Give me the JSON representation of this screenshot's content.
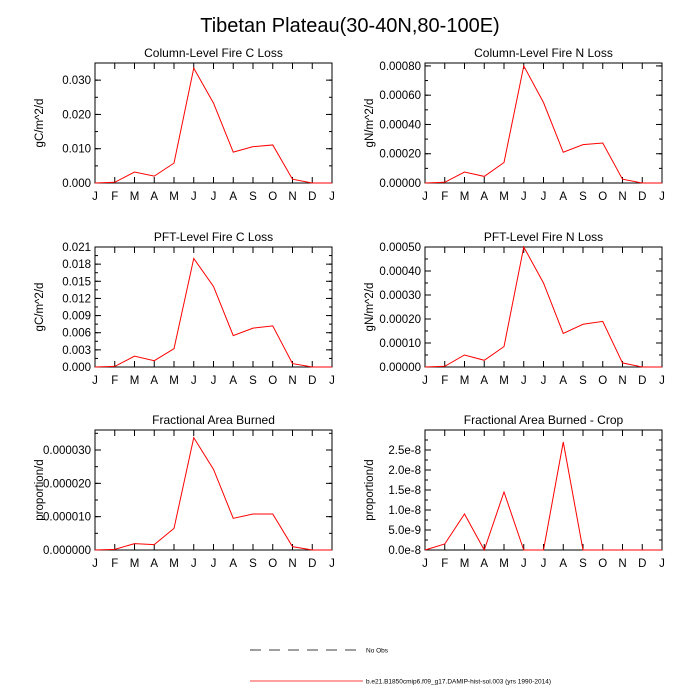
{
  "figure_title": "Tibetan Plateau(30-40N,80-100E)",
  "month_labels": [
    "J",
    "F",
    "M",
    "A",
    "M",
    "J",
    "J",
    "A",
    "S",
    "O",
    "N",
    "D",
    "J"
  ],
  "colors": {
    "model": "#ff0000",
    "obs": "#000000"
  },
  "legend": [
    {
      "label": "No Obs",
      "style": "dashed",
      "color": "#000000"
    },
    {
      "label": "b.e21.B1850cmip6.f09_g17.DAMIP-hist-sol.003 (yrs 1990-2014)",
      "style": "solid",
      "color": "#ff0000"
    }
  ],
  "chart_data": [
    {
      "type": "line",
      "title": "Column-Level Fire C Loss",
      "ylabel": "gC/m^2/d",
      "ylim": [
        0,
        0.035
      ],
      "yticks": [
        0,
        0.01,
        0.02,
        0.03
      ],
      "ytick_labels": [
        "0.000",
        "0.010",
        "0.020",
        "0.030"
      ],
      "yminor": 0.005,
      "x": [
        0,
        1,
        2,
        3,
        4,
        5,
        6,
        7,
        8,
        9,
        10,
        11,
        12
      ],
      "values": [
        0.0,
        0.0002,
        0.0032,
        0.002,
        0.0058,
        0.0335,
        0.0233,
        0.009,
        0.0106,
        0.0111,
        0.0011,
        0.0,
        0.0
      ]
    },
    {
      "type": "line",
      "title": "Column-Level Fire N Loss",
      "ylabel": "gN/m^2/d",
      "ylim": [
        0,
        0.00082
      ],
      "yticks": [
        0,
        0.0002,
        0.0004,
        0.0006,
        0.0008
      ],
      "ytick_labels": [
        "0.00000",
        "0.00020",
        "0.00040",
        "0.00060",
        "0.00080"
      ],
      "yminor": 0.0001,
      "x": [
        0,
        1,
        2,
        3,
        4,
        5,
        6,
        7,
        8,
        9,
        10,
        11,
        12
      ],
      "values": [
        0.0,
        5e-06,
        7.5e-05,
        4.5e-05,
        0.00014,
        0.0008,
        0.00055,
        0.00021,
        0.000262,
        0.000273,
        2.6e-05,
        0.0,
        0.0
      ]
    },
    {
      "type": "line",
      "title": "PFT-Level Fire C Loss",
      "ylabel": "gC/m^2/d",
      "ylim": [
        0,
        0.021
      ],
      "yticks": [
        0,
        0.003,
        0.006,
        0.009,
        0.012,
        0.015,
        0.018,
        0.021
      ],
      "ytick_labels": [
        "0.000",
        "0.003",
        "0.006",
        "0.009",
        "0.012",
        "0.015",
        "0.018",
        "0.021"
      ],
      "yminor": 0.0015,
      "x": [
        0,
        1,
        2,
        3,
        4,
        5,
        6,
        7,
        8,
        9,
        10,
        11,
        12
      ],
      "values": [
        0.0,
        0.0001,
        0.0019,
        0.0011,
        0.0032,
        0.019,
        0.0141,
        0.0055,
        0.0068,
        0.0072,
        0.0006,
        0.0,
        0.0
      ]
    },
    {
      "type": "line",
      "title": "PFT-Level Fire N Loss",
      "ylabel": "gN/m^2/d",
      "ylim": [
        0,
        0.0005
      ],
      "yticks": [
        0,
        0.0001,
        0.0002,
        0.0003,
        0.0004,
        0.0005
      ],
      "ytick_labels": [
        "0.00000",
        "0.00010",
        "0.00020",
        "0.00030",
        "0.00040",
        "0.00050"
      ],
      "yminor": 5e-05,
      "x": [
        0,
        1,
        2,
        3,
        4,
        5,
        6,
        7,
        8,
        9,
        10,
        11,
        12
      ],
      "values": [
        0.0,
        3e-06,
        5e-05,
        2.8e-05,
        8.5e-05,
        0.0005,
        0.00035,
        0.00014,
        0.000178,
        0.00019,
        1.7e-05,
        0.0,
        0.0
      ]
    },
    {
      "type": "line",
      "title": "Fractional Area Burned",
      "ylabel": "proportion/d",
      "ylim": [
        0,
        3.6e-05
      ],
      "yticks": [
        0,
        1e-05,
        2e-05,
        3e-05
      ],
      "ytick_labels": [
        "0.000000",
        "0.000010",
        "0.000020",
        "0.000030"
      ],
      "yminor": 5e-06,
      "x": [
        0,
        1,
        2,
        3,
        4,
        5,
        6,
        7,
        8,
        9,
        10,
        11,
        12
      ],
      "values": [
        0.0,
        2e-07,
        1.9e-06,
        1.6e-06,
        6.5e-06,
        3.37e-05,
        2.42e-05,
        9.5e-06,
        1.08e-05,
        1.08e-05,
        1e-06,
        0.0,
        0.0
      ]
    },
    {
      "type": "line",
      "title": "Fractional Area Burned - Crop",
      "ylabel": "proportion/d",
      "ylim": [
        0,
        3e-08
      ],
      "yticks": [
        0,
        5e-09,
        1e-08,
        1.5e-08,
        2e-08,
        2.5e-08
      ],
      "ytick_labels": [
        "0.0e-8",
        "5.0e-9",
        "1.0e-8",
        "1.5e-8",
        "2.0e-8",
        "2.5e-8"
      ],
      "yminor": 2.5e-09,
      "x": [
        0,
        1,
        2,
        3,
        4,
        5,
        6,
        7,
        8,
        9,
        10,
        11,
        12
      ],
      "values": [
        0.0,
        1.5e-09,
        9e-09,
        0.0,
        1.45e-08,
        0.0,
        0.0,
        2.7e-08,
        0.0,
        0.0,
        0.0,
        0.0,
        0.0
      ]
    }
  ]
}
